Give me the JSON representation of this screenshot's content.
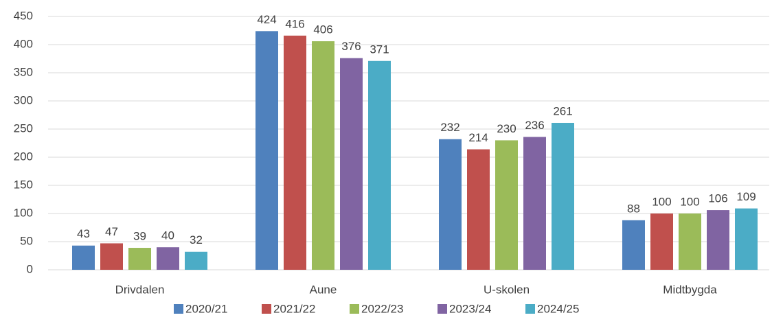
{
  "chart_data": {
    "type": "bar",
    "categories": [
      "Drivdalen",
      "Aune",
      "U-skolen",
      "Midtbygda"
    ],
    "series": [
      {
        "name": "2020/21",
        "color": "#4f81bd",
        "values": [
          43,
          424,
          232,
          88
        ]
      },
      {
        "name": "2021/22",
        "color": "#c0504d",
        "values": [
          47,
          416,
          214,
          100
        ]
      },
      {
        "name": "2022/23",
        "color": "#9bbb59",
        "values": [
          39,
          406,
          230,
          100
        ]
      },
      {
        "name": "2023/24",
        "color": "#8064a2",
        "values": [
          40,
          376,
          236,
          106
        ]
      },
      {
        "name": "2024/25",
        "color": "#4bacc6",
        "values": [
          32,
          371,
          261,
          109
        ]
      }
    ],
    "ylim": [
      0,
      450
    ],
    "yticks": [
      0,
      50,
      100,
      150,
      200,
      250,
      300,
      350,
      400,
      450
    ],
    "grid": true,
    "legend": "bottom"
  }
}
